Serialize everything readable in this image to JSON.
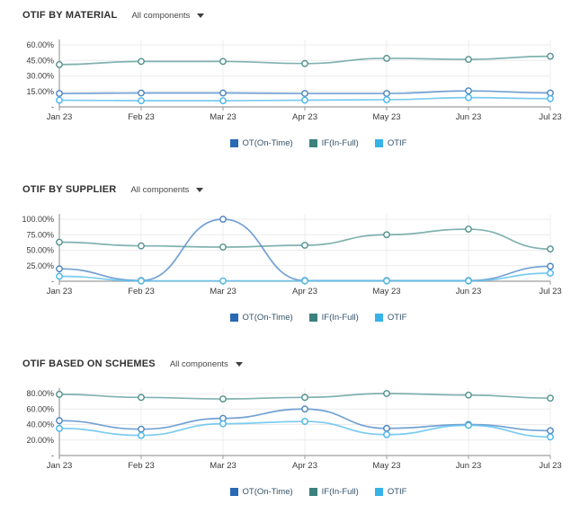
{
  "legend": {
    "items": [
      {
        "name": "OT(On-Time)",
        "color": "#2a69b4",
        "line_color": "#5b92cc",
        "marker_color": "#4a83c0"
      },
      {
        "name": "IF(In-Full)",
        "color": "#3b817e",
        "line_color": "#6aa5a1",
        "marker_color": "#4f918e"
      },
      {
        "name": "OTIF",
        "color": "#36b3e9",
        "line_color": "#63c2ef",
        "marker_color": "#47b4ea"
      }
    ]
  },
  "axis_colors": {
    "gridline": "#ececec",
    "axis_line": "#9e9e9e",
    "tick_text": "#3a3a3a"
  },
  "chart_data": [
    {
      "type": "line",
      "title": "OTIF BY MATERIAL",
      "dropdown": {
        "selected": "All components"
      },
      "x": [
        "Jan 23",
        "Feb 23",
        "Mar 23",
        "Apr 23",
        "May 23",
        "Jun 23",
        "Jul 23"
      ],
      "ylim": [
        0,
        60
      ],
      "y_tick_labels": [
        "60.00%",
        "45.00%",
        "30.00%",
        "15.00%",
        "-"
      ],
      "grid": true,
      "legend_position": "bottom",
      "series": [
        {
          "name": "OT(On-Time)",
          "values": [
            13,
            13.5,
            13.5,
            13,
            13,
            15.5,
            13.5
          ]
        },
        {
          "name": "IF(In-Full)",
          "values": [
            41,
            44,
            44,
            42,
            47,
            46,
            49
          ]
        },
        {
          "name": "OTIF",
          "values": [
            6.5,
            6,
            6,
            6.5,
            7,
            9,
            8
          ]
        }
      ]
    },
    {
      "type": "line",
      "title": "OTIF BY SUPPLIER",
      "dropdown": {
        "selected": "All components"
      },
      "x": [
        "Jan 23",
        "Feb 23",
        "Mar 23",
        "Apr 23",
        "May 23",
        "Jun 23",
        "Jul 23"
      ],
      "ylim": [
        0,
        100
      ],
      "y_tick_labels": [
        "100.00%",
        "75.00%",
        "50.00%",
        "25.00%",
        "-"
      ],
      "grid": true,
      "legend_position": "bottom",
      "series": [
        {
          "name": "OT(On-Time)",
          "values": [
            20,
            1,
            100,
            1,
            1,
            1,
            24
          ]
        },
        {
          "name": "IF(In-Full)",
          "values": [
            63,
            57,
            55,
            58,
            75,
            84,
            52
          ]
        },
        {
          "name": "OTIF",
          "values": [
            8,
            0.5,
            0.5,
            0.5,
            0.5,
            0.5,
            13
          ]
        }
      ]
    },
    {
      "type": "line",
      "title": "OTIF BASED ON SCHEMES",
      "dropdown": {
        "selected": "All components"
      },
      "x": [
        "Jan 23",
        "Feb 23",
        "Mar 23",
        "Apr 23",
        "May 23",
        "Jun 23",
        "Jul 23"
      ],
      "ylim": [
        0,
        80
      ],
      "y_tick_labels": [
        "80.00%",
        "60.00%",
        "40.00%",
        "20.00%",
        "-"
      ],
      "grid": true,
      "legend_position": "bottom",
      "series": [
        {
          "name": "OT(On-Time)",
          "values": [
            45,
            34,
            48,
            60,
            35,
            40,
            32
          ]
        },
        {
          "name": "IF(In-Full)",
          "values": [
            79,
            75,
            73,
            75,
            80,
            78,
            74
          ]
        },
        {
          "name": "OTIF",
          "values": [
            35,
            26,
            41,
            44,
            27,
            39,
            24
          ]
        }
      ]
    }
  ]
}
